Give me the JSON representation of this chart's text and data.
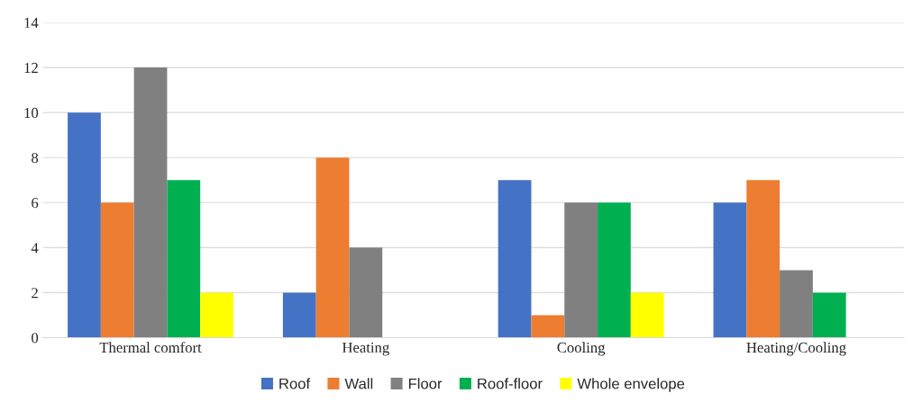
{
  "chart_data": {
    "type": "bar",
    "categories": [
      "Thermal comfort",
      "Heating",
      "Cooling",
      "Heating/Cooling"
    ],
    "series": [
      {
        "name": "Roof",
        "color": "#4472c4",
        "values": [
          10,
          2,
          7,
          6
        ]
      },
      {
        "name": "Wall",
        "color": "#ed7d31",
        "values": [
          6,
          8,
          1,
          7
        ]
      },
      {
        "name": "Floor",
        "color": "#808080",
        "values": [
          12,
          4,
          6,
          3
        ]
      },
      {
        "name": "Roof-floor",
        "color": "#00b050",
        "values": [
          7,
          null,
          6,
          2
        ]
      },
      {
        "name": "Whole envelope",
        "color": "#ffff00",
        "values": [
          2,
          null,
          2,
          null
        ]
      }
    ],
    "ylim": [
      0,
      14
    ],
    "yticks": [
      0,
      2,
      4,
      6,
      8,
      10,
      12,
      14
    ],
    "grid": "y",
    "legend": "bottom"
  }
}
